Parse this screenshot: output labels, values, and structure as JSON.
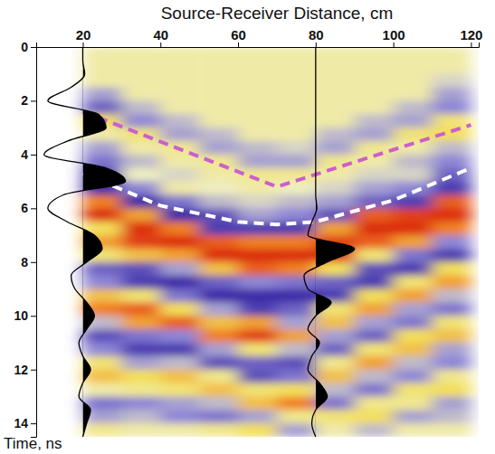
{
  "chart_data": {
    "type": "heatmap",
    "title": "Source-Receiver Distance, cm",
    "y_label": "Time, ns",
    "xlim": [
      8,
      122
    ],
    "ylim": [
      14.5,
      0
    ],
    "xticks": [
      20,
      40,
      60,
      80,
      100,
      120
    ],
    "yticks": [
      0,
      2,
      4,
      6,
      8,
      10,
      12,
      14
    ],
    "zlim": [
      -1,
      1
    ],
    "x_bins": [
      20,
      30,
      40,
      50,
      60,
      70,
      80,
      90,
      100,
      110,
      120
    ],
    "y_bins": [
      0,
      0.5,
      1,
      1.5,
      2,
      2.5,
      3,
      3.5,
      4,
      4.5,
      5,
      5.5,
      6,
      6.5,
      7,
      7.5,
      8,
      8.5,
      9,
      9.5,
      10,
      10.5,
      11,
      11.5,
      12,
      12.5,
      13,
      13.5,
      14,
      14.5
    ],
    "cells": [
      [
        0.1,
        0.1,
        0.1,
        0.1,
        0.1,
        0.1,
        0.1,
        0.1,
        0.1,
        0.1
      ],
      [
        0.1,
        0.1,
        0.1,
        0.1,
        0.1,
        0.1,
        0.1,
        0.1,
        0.1,
        0.1
      ],
      [
        0.1,
        0.1,
        0.1,
        0.1,
        0.1,
        0.1,
        0.1,
        0.1,
        0.1,
        -0.1
      ],
      [
        -0.3,
        0.1,
        0.1,
        0.1,
        0.1,
        0.1,
        0.1,
        0.1,
        0.1,
        -0.3
      ],
      [
        -0.6,
        -0.2,
        0.1,
        0.1,
        0.1,
        0.1,
        0.1,
        0.1,
        -0.2,
        -0.4
      ],
      [
        0.4,
        -0.4,
        -0.2,
        0.1,
        0.1,
        0.1,
        0.1,
        -0.2,
        -0.3,
        0.3
      ],
      [
        0.1,
        0.3,
        -0.3,
        -0.2,
        0.1,
        0.1,
        -0.2,
        -0.3,
        0.3,
        0.4
      ],
      [
        -0.3,
        0.1,
        0.2,
        -0.3,
        -0.2,
        -0.1,
        -0.3,
        0.2,
        0.1,
        -0.2
      ],
      [
        -0.5,
        -0.2,
        0.1,
        0.2,
        -0.3,
        -0.3,
        0.2,
        0.1,
        -0.2,
        -0.4
      ],
      [
        -0.8,
        0.0,
        -0.1,
        0.1,
        0.2,
        0.2,
        0.1,
        -0.1,
        -0.1,
        -0.6
      ],
      [
        -0.9,
        -0.4,
        0.1,
        0.0,
        0.1,
        0.0,
        -0.1,
        -0.3,
        -0.4,
        -0.8
      ],
      [
        0.7,
        -0.9,
        -0.5,
        -0.2,
        -0.1,
        -0.2,
        -0.3,
        -0.6,
        -0.8,
        0.8
      ],
      [
        0.95,
        0.6,
        -0.9,
        -0.7,
        -0.3,
        -0.4,
        -0.7,
        0.8,
        0.9,
        0.95
      ],
      [
        0.4,
        0.95,
        0.7,
        -0.8,
        -0.8,
        -0.8,
        0.6,
        0.95,
        0.95,
        0.7
      ],
      [
        0.6,
        0.9,
        0.95,
        0.8,
        0.7,
        0.7,
        0.9,
        0.8,
        0.6,
        -0.4
      ],
      [
        0.3,
        0.5,
        0.6,
        0.95,
        0.95,
        0.95,
        0.95,
        0.3,
        -0.5,
        -0.8
      ],
      [
        -0.6,
        -0.7,
        -0.3,
        0.5,
        0.8,
        0.7,
        0.4,
        -0.7,
        -0.8,
        0.4
      ],
      [
        -0.4,
        -0.8,
        -0.9,
        -0.6,
        -0.4,
        -0.5,
        -0.6,
        -0.8,
        0.3,
        0.6
      ],
      [
        0.5,
        0.3,
        -0.5,
        -0.9,
        -0.9,
        -0.9,
        -0.8,
        0.4,
        0.6,
        -0.2
      ],
      [
        0.7,
        0.8,
        0.4,
        -0.3,
        -0.8,
        -0.6,
        0.3,
        0.6,
        -0.3,
        -0.5
      ],
      [
        -0.2,
        0.6,
        0.8,
        0.5,
        0.6,
        -0.3,
        0.5,
        -0.3,
        -0.5,
        0.3
      ],
      [
        -0.7,
        -0.5,
        -0.4,
        0.7,
        0.9,
        0.6,
        -0.3,
        -0.6,
        0.4,
        0.5
      ],
      [
        -0.4,
        -0.8,
        -0.8,
        -0.3,
        0.3,
        -0.2,
        -0.6,
        0.3,
        0.5,
        -0.3
      ],
      [
        0.3,
        -0.3,
        -0.2,
        -0.7,
        -0.6,
        -0.7,
        0.2,
        0.6,
        -0.2,
        -0.4
      ],
      [
        0.5,
        0.4,
        0.5,
        0.2,
        -0.7,
        -0.5,
        0.5,
        -0.2,
        -0.4,
        0.2
      ],
      [
        0.1,
        0.2,
        0.3,
        0.5,
        0.3,
        0.4,
        -0.2,
        -0.5,
        0.3,
        0.4
      ],
      [
        -0.5,
        -0.4,
        -0.3,
        -0.2,
        0.5,
        0.7,
        -0.5,
        0.2,
        0.2,
        -0.3
      ],
      [
        -0.3,
        -0.2,
        -0.4,
        -0.5,
        -0.3,
        0.2,
        0.3,
        0.4,
        -0.3,
        -0.2
      ],
      [
        0.2,
        0.1,
        0.1,
        0.2,
        0.4,
        -0.3,
        0.1,
        -0.2,
        0.1,
        0.1
      ]
    ],
    "trace_t": [
      0,
      0.5,
      1,
      1.5,
      2,
      2.5,
      3,
      3.5,
      4,
      4.5,
      5,
      5.5,
      6,
      6.5,
      7,
      7.5,
      8,
      8.5,
      9,
      9.5,
      10,
      10.5,
      11,
      11.5,
      12,
      12.5,
      13,
      13.5,
      14,
      14.5
    ],
    "traces": [
      {
        "x": 20,
        "color": "#000000",
        "values": [
          0,
          0,
          0.5,
          -3,
          -9,
          4,
          6,
          -4,
          -10,
          6,
          11,
          -5,
          -9,
          -4,
          3,
          5,
          1,
          -3,
          -2,
          1,
          3,
          1,
          -1,
          0,
          2,
          0,
          -1,
          2,
          1,
          0
        ]
      },
      {
        "x": 80,
        "color": "#000000",
        "values": [
          0,
          0,
          0,
          0,
          0,
          0,
          0,
          0,
          0,
          0,
          0,
          0,
          0.3,
          -1,
          -2,
          10,
          3,
          -3,
          -2,
          4,
          0,
          -2,
          1,
          -1,
          -2,
          1,
          3,
          0,
          -1,
          0
        ]
      }
    ],
    "lines": [
      {
        "color": "#cc5fcc",
        "line_style": "dashed",
        "x": [
          20,
          70,
          120
        ],
        "y": [
          2.4,
          5.2,
          2.9
        ]
      },
      {
        "color": "#ffffff",
        "line_style": "dashed",
        "x": [
          20,
          40,
          60,
          70,
          80,
          100,
          120
        ],
        "y": [
          4.7,
          5.9,
          6.5,
          6.6,
          6.5,
          5.7,
          4.5
        ]
      }
    ]
  }
}
